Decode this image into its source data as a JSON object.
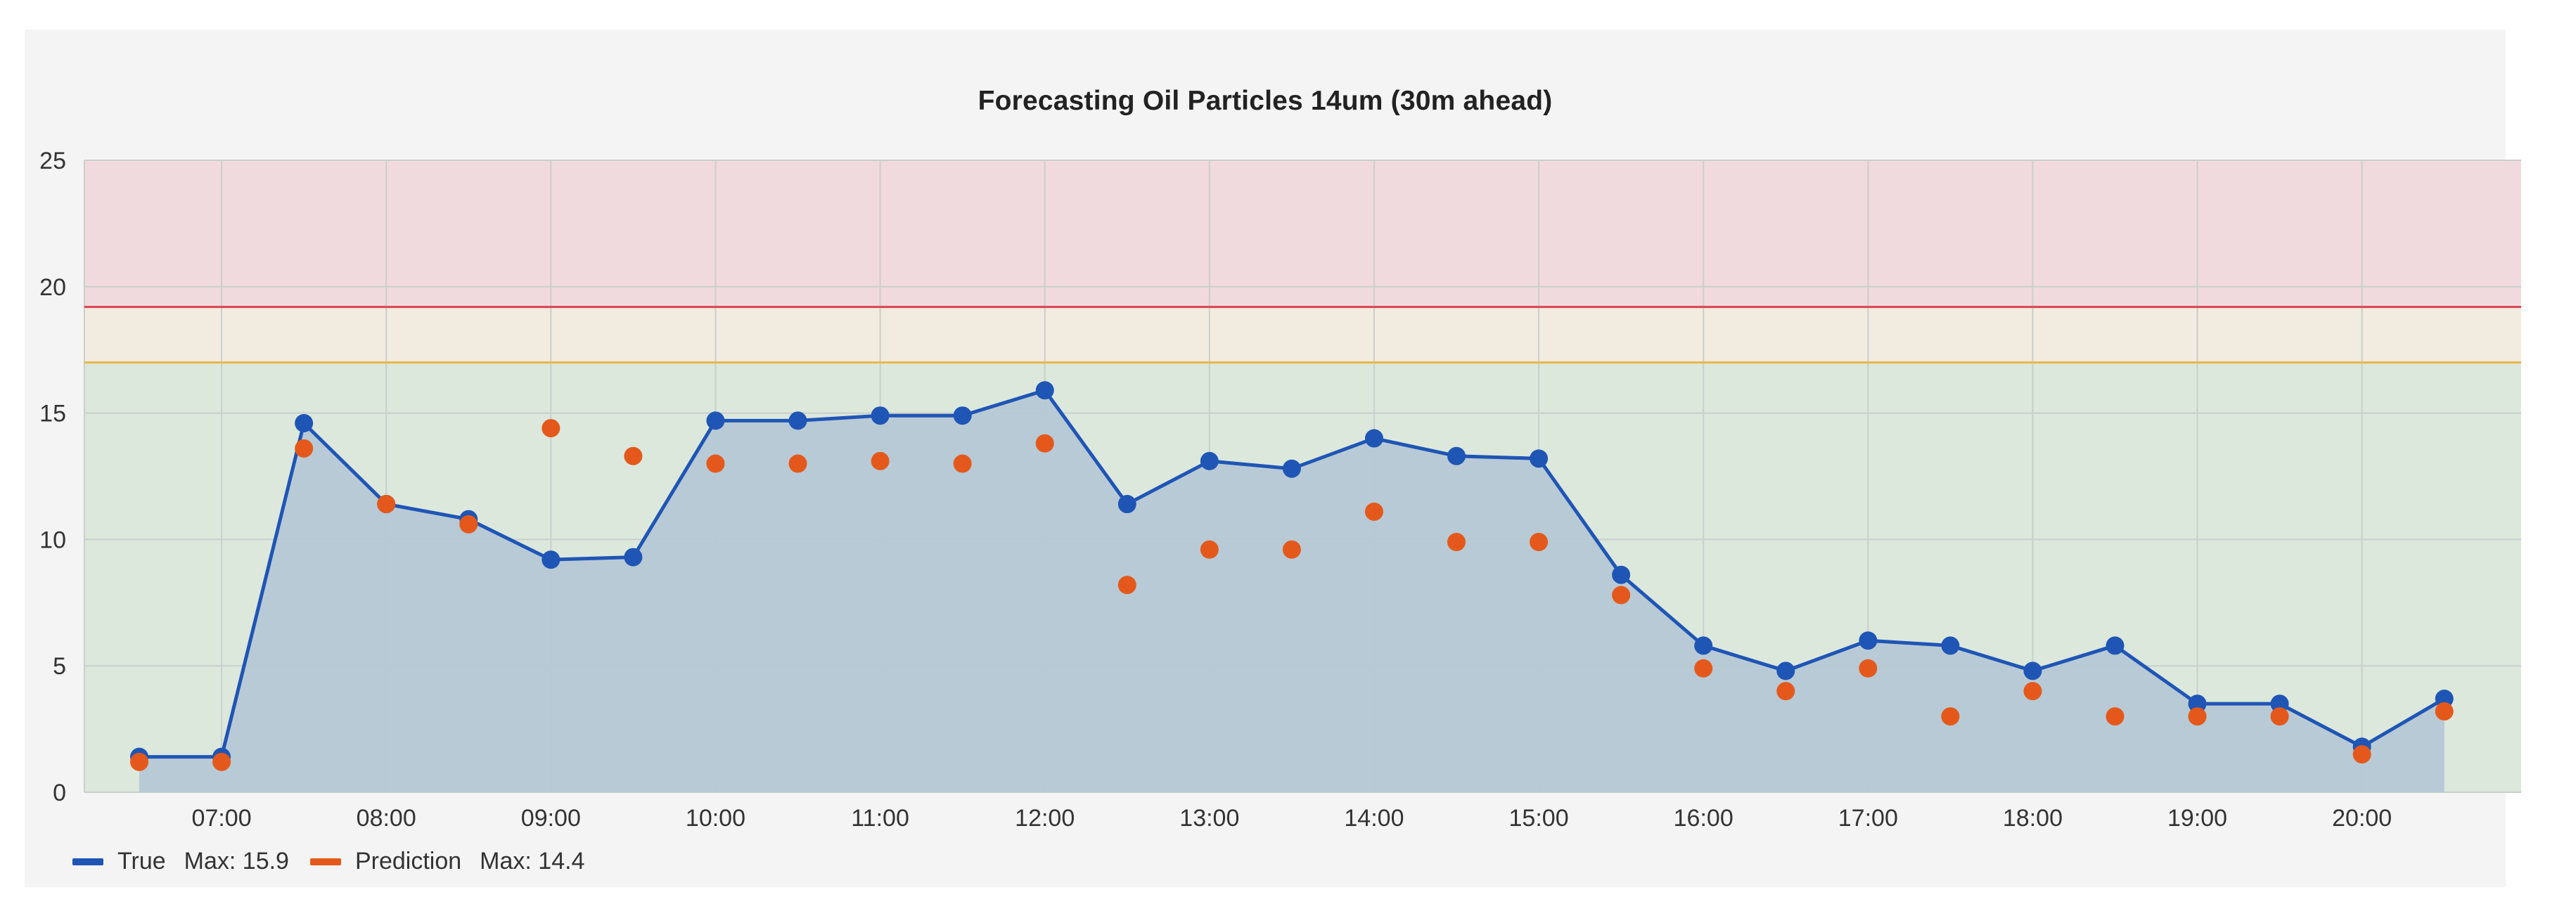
{
  "chart_data": {
    "type": "line",
    "title": "Forecasting Oil Particles 14um (30m ahead)",
    "xlabel": "",
    "ylabel": "",
    "ylim": [
      0,
      25
    ],
    "xlim": [
      "06:10",
      "20:58"
    ],
    "y_ticks": [
      "0",
      "5",
      "10",
      "15",
      "20",
      "25"
    ],
    "x_ticks": [
      "07:00",
      "08:00",
      "09:00",
      "10:00",
      "11:00",
      "12:00",
      "13:00",
      "14:00",
      "15:00",
      "16:00",
      "17:00",
      "18:00",
      "19:00",
      "20:00"
    ],
    "grid": true,
    "legend_position": "bottom-left",
    "thresholds": [
      {
        "value": 17.0,
        "color": "#e8b84a",
        "band_color": "#dce8dc",
        "band_range": [
          0,
          17.0
        ]
      },
      {
        "value": 19.2,
        "color": "#d94452",
        "band_color": "#f2ebdf",
        "band_range": [
          17.0,
          19.2
        ]
      },
      {
        "value": 25,
        "color": "#f1dade",
        "band_color": "#f1dade",
        "band_range": [
          19.2,
          25
        ]
      }
    ],
    "series": [
      {
        "name": "True",
        "color": "#1f55b5",
        "style": "line-area-markers",
        "points": [
          [
            "06:30",
            1.4
          ],
          [
            "07:00",
            1.4
          ],
          [
            "07:30",
            14.6
          ],
          [
            "08:00",
            11.4
          ],
          [
            "08:30",
            10.8
          ],
          [
            "09:00",
            9.2
          ],
          [
            "09:30",
            9.3
          ],
          [
            "10:00",
            14.7
          ],
          [
            "10:30",
            14.7
          ],
          [
            "11:00",
            14.9
          ],
          [
            "11:30",
            14.9
          ],
          [
            "12:00",
            15.9
          ],
          [
            "12:30",
            11.4
          ],
          [
            "13:00",
            13.1
          ],
          [
            "13:30",
            12.8
          ],
          [
            "14:00",
            14.0
          ],
          [
            "14:30",
            13.3
          ],
          [
            "15:00",
            13.2
          ],
          [
            "15:30",
            8.6
          ],
          [
            "16:00",
            5.8
          ],
          [
            "16:30",
            4.8
          ],
          [
            "17:00",
            6.0
          ],
          [
            "17:30",
            5.8
          ],
          [
            "18:00",
            4.8
          ],
          [
            "18:30",
            5.8
          ],
          [
            "19:00",
            3.5
          ],
          [
            "19:30",
            3.5
          ],
          [
            "20:00",
            1.8
          ],
          [
            "20:30",
            3.7
          ]
        ]
      },
      {
        "name": "Prediction",
        "color": "#e4591b",
        "style": "markers",
        "points": [
          [
            "06:30",
            1.2
          ],
          [
            "07:00",
            1.2
          ],
          [
            "07:30",
            13.6
          ],
          [
            "08:00",
            11.4
          ],
          [
            "08:30",
            10.6
          ],
          [
            "09:00",
            14.4
          ],
          [
            "09:30",
            13.3
          ],
          [
            "10:00",
            13.0
          ],
          [
            "10:30",
            13.0
          ],
          [
            "11:00",
            13.1
          ],
          [
            "11:30",
            13.0
          ],
          [
            "12:00",
            13.8
          ],
          [
            "12:30",
            8.2
          ],
          [
            "13:00",
            9.6
          ],
          [
            "13:30",
            9.6
          ],
          [
            "14:00",
            11.1
          ],
          [
            "14:30",
            9.9
          ],
          [
            "15:00",
            9.9
          ],
          [
            "15:30",
            7.8
          ],
          [
            "16:00",
            4.9
          ],
          [
            "16:30",
            4.0
          ],
          [
            "17:00",
            4.9
          ],
          [
            "17:30",
            3.0
          ],
          [
            "18:00",
            4.0
          ],
          [
            "18:30",
            3.0
          ],
          [
            "19:00",
            3.0
          ],
          [
            "19:30",
            3.0
          ],
          [
            "20:00",
            1.5
          ],
          [
            "20:30",
            3.2
          ]
        ]
      }
    ]
  },
  "legend": {
    "true_label": "True",
    "true_max": "Max: 15.9",
    "prediction_label": "Prediction",
    "prediction_max": "Max: 14.4"
  }
}
